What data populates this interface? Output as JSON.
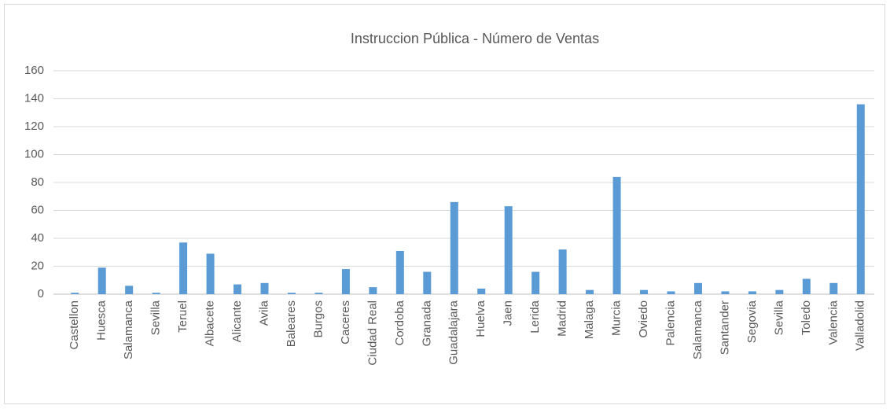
{
  "chart_data": {
    "type": "bar",
    "title": "Instruccion Pública - Número de Ventas",
    "categories": [
      "Castellon",
      "Huesca",
      "Salamanca",
      "Sevilla",
      "Teruel",
      "Albacete",
      "Alicante",
      "Avila",
      "Baleares",
      "Burgos",
      "Caceres",
      "Ciudad Real",
      "Cordoba",
      "Granada",
      "Guadalajara",
      "Huelva",
      "Jaen",
      "Lerida",
      "Madrid",
      "Malaga",
      "Murcia",
      "Oviedo",
      "Palencia",
      "Salamanca",
      "Santander",
      "Segovia",
      "Sevilla",
      "Toledo",
      "Valencia",
      "Valladolid"
    ],
    "values": [
      1,
      19,
      6,
      1,
      37,
      29,
      7,
      8,
      1,
      1,
      18,
      5,
      31,
      16,
      66,
      4,
      63,
      16,
      32,
      3,
      84,
      3,
      2,
      8,
      2,
      2,
      3,
      11,
      8,
      136
    ],
    "color": "#5b9bd5",
    "ylim": [
      0,
      160
    ],
    "yticks": [
      0,
      20,
      40,
      60,
      80,
      100,
      120,
      140,
      160
    ],
    "grid": true
  }
}
